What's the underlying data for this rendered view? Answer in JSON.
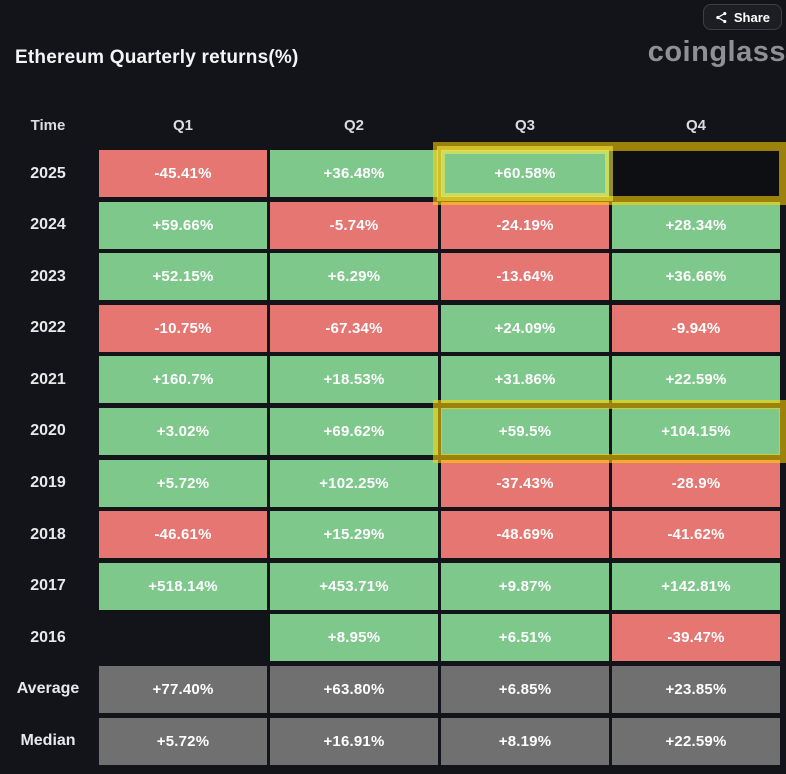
{
  "header": {
    "title": "Ethereum Quarterly returns(%)",
    "brand": "coinglass",
    "share_label": "Share"
  },
  "table": {
    "columns": [
      "Time",
      "Q1",
      "Q2",
      "Q3",
      "Q4"
    ],
    "rows": [
      {
        "label": "2025",
        "cells": [
          {
            "v": "-45.41%",
            "c": "neg"
          },
          {
            "v": "+36.48%",
            "c": "pos"
          },
          {
            "v": "+60.58%",
            "c": "pos"
          },
          {
            "v": "",
            "c": "empty"
          }
        ]
      },
      {
        "label": "2024",
        "cells": [
          {
            "v": "+59.66%",
            "c": "pos"
          },
          {
            "v": "-5.74%",
            "c": "neg"
          },
          {
            "v": "-24.19%",
            "c": "neg"
          },
          {
            "v": "+28.34%",
            "c": "pos"
          }
        ]
      },
      {
        "label": "2023",
        "cells": [
          {
            "v": "+52.15%",
            "c": "pos"
          },
          {
            "v": "+6.29%",
            "c": "pos"
          },
          {
            "v": "-13.64%",
            "c": "neg"
          },
          {
            "v": "+36.66%",
            "c": "pos"
          }
        ]
      },
      {
        "label": "2022",
        "cells": [
          {
            "v": "-10.75%",
            "c": "neg"
          },
          {
            "v": "-67.34%",
            "c": "neg"
          },
          {
            "v": "+24.09%",
            "c": "pos"
          },
          {
            "v": "-9.94%",
            "c": "neg"
          }
        ]
      },
      {
        "label": "2021",
        "cells": [
          {
            "v": "+160.7%",
            "c": "pos"
          },
          {
            "v": "+18.53%",
            "c": "pos"
          },
          {
            "v": "+31.86%",
            "c": "pos"
          },
          {
            "v": "+22.59%",
            "c": "pos"
          }
        ]
      },
      {
        "label": "2020",
        "cells": [
          {
            "v": "+3.02%",
            "c": "pos"
          },
          {
            "v": "+69.62%",
            "c": "pos"
          },
          {
            "v": "+59.5%",
            "c": "pos"
          },
          {
            "v": "+104.15%",
            "c": "pos"
          }
        ]
      },
      {
        "label": "2019",
        "cells": [
          {
            "v": "+5.72%",
            "c": "pos"
          },
          {
            "v": "+102.25%",
            "c": "pos"
          },
          {
            "v": "-37.43%",
            "c": "neg"
          },
          {
            "v": "-28.9%",
            "c": "neg"
          }
        ]
      },
      {
        "label": "2018",
        "cells": [
          {
            "v": "-46.61%",
            "c": "neg"
          },
          {
            "v": "+15.29%",
            "c": "pos"
          },
          {
            "v": "-48.69%",
            "c": "neg"
          },
          {
            "v": "-41.62%",
            "c": "neg"
          }
        ]
      },
      {
        "label": "2017",
        "cells": [
          {
            "v": "+518.14%",
            "c": "pos"
          },
          {
            "v": "+453.71%",
            "c": "pos"
          },
          {
            "v": "+9.87%",
            "c": "pos"
          },
          {
            "v": "+142.81%",
            "c": "pos"
          }
        ]
      },
      {
        "label": "2016",
        "cells": [
          {
            "v": "",
            "c": "none"
          },
          {
            "v": "+8.95%",
            "c": "pos"
          },
          {
            "v": "+6.51%",
            "c": "pos"
          },
          {
            "v": "-39.47%",
            "c": "neg"
          }
        ]
      },
      {
        "label": "Average",
        "cells": [
          {
            "v": "+77.40%",
            "c": "avg"
          },
          {
            "v": "+63.80%",
            "c": "avg"
          },
          {
            "v": "+6.85%",
            "c": "avg"
          },
          {
            "v": "+23.85%",
            "c": "avg"
          }
        ]
      },
      {
        "label": "Median",
        "cells": [
          {
            "v": "+5.72%",
            "c": "avg"
          },
          {
            "v": "+16.91%",
            "c": "avg"
          },
          {
            "v": "+8.19%",
            "c": "avg"
          },
          {
            "v": "+22.59%",
            "c": "avg"
          }
        ]
      }
    ]
  },
  "highlights": [
    {
      "name": "highlight-2025-q3-q4",
      "row": 0,
      "col_start": 2,
      "col_end": 3,
      "style": "outer"
    },
    {
      "name": "highlight-2025-q3",
      "row": 0,
      "col_start": 2,
      "col_end": 2,
      "style": "inner"
    },
    {
      "name": "highlight-2020-q3-q4",
      "row": 5,
      "col_start": 2,
      "col_end": 3,
      "style": "outer"
    }
  ],
  "colors": {
    "background": "#131419",
    "positive": "#7ec88c",
    "negative": "#e57672",
    "summary": "#707070",
    "highlight_outer": "rgba(255,211,0,0.58)",
    "highlight_inner": "rgba(255,238,70,0.55)"
  },
  "chart_data": {
    "type": "heatmap",
    "title": "Ethereum Quarterly returns(%)",
    "columns": [
      "Q1",
      "Q2",
      "Q3",
      "Q4"
    ],
    "rows": [
      "2025",
      "2024",
      "2023",
      "2022",
      "2021",
      "2020",
      "2019",
      "2018",
      "2017",
      "2016",
      "Average",
      "Median"
    ],
    "values": [
      [
        -45.41,
        36.48,
        60.58,
        null
      ],
      [
        59.66,
        -5.74,
        -24.19,
        28.34
      ],
      [
        52.15,
        6.29,
        -13.64,
        36.66
      ],
      [
        -10.75,
        -67.34,
        24.09,
        -9.94
      ],
      [
        160.7,
        18.53,
        31.86,
        22.59
      ],
      [
        3.02,
        69.62,
        59.5,
        104.15
      ],
      [
        5.72,
        102.25,
        -37.43,
        -28.9
      ],
      [
        -46.61,
        15.29,
        -48.69,
        -41.62
      ],
      [
        518.14,
        453.71,
        9.87,
        142.81
      ],
      [
        null,
        8.95,
        6.51,
        -39.47
      ],
      [
        77.4,
        63.8,
        6.85,
        23.85
      ],
      [
        5.72,
        16.91,
        8.19,
        22.59
      ]
    ],
    "color_coding": "green=positive return, red=negative return, gray=Average/Median summary rows, dark=no data",
    "highlighted_cells": [
      "2025 Q3",
      "2025 Q4",
      "2020 Q3",
      "2020 Q4"
    ],
    "legend_position": "none",
    "grid": false
  }
}
